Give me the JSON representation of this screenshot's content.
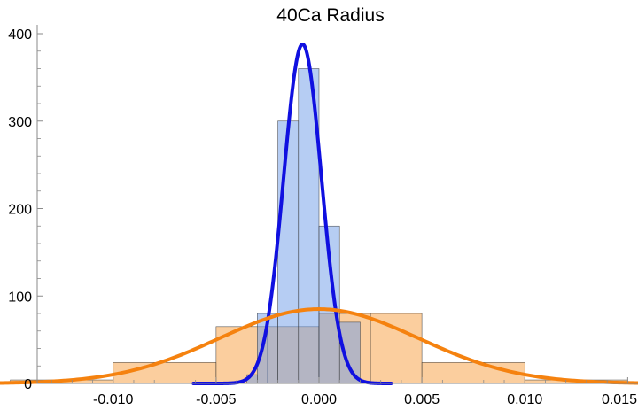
{
  "chart_data": {
    "type": "histogram",
    "title": "40Ca Radius",
    "xlabel": "",
    "ylabel": "",
    "xlim": [
      -0.0155,
      0.0155
    ],
    "ylim": [
      0,
      400
    ],
    "x_ticks": [
      "-0.010",
      "-0.005",
      "0.000",
      "0.005",
      "0.010",
      "0.015"
    ],
    "x_tick_values": [
      -0.01,
      -0.005,
      0.0,
      0.005,
      0.01,
      0.015
    ],
    "y_ticks": [
      "0",
      "100",
      "200",
      "300",
      "400"
    ],
    "y_tick_values": [
      0,
      100,
      200,
      300,
      400
    ],
    "grid": false,
    "histograms": [
      {
        "color": "#6d9be8",
        "bins": [
          {
            "x0": -0.0035,
            "x1": -0.003,
            "count": 10
          },
          {
            "x0": -0.003,
            "x1": -0.002,
            "count": 80
          },
          {
            "x0": -0.002,
            "x1": -0.001,
            "count": 300
          },
          {
            "x0": -0.001,
            "x1": 0.0,
            "count": 360
          },
          {
            "x0": 0.0,
            "x1": 0.001,
            "count": 180
          },
          {
            "x0": 0.001,
            "x1": 0.002,
            "count": 70
          }
        ]
      },
      {
        "color": "#f7a64f",
        "bins": [
          {
            "x0": -0.015,
            "x1": -0.01,
            "count": 4
          },
          {
            "x0": -0.01,
            "x1": -0.005,
            "count": 24
          },
          {
            "x0": -0.005,
            "x1": -0.0025,
            "count": 65
          },
          {
            "x0": -0.0025,
            "x1": 0.0,
            "count": 65
          },
          {
            "x0": 0.0,
            "x1": 0.0025,
            "count": 80
          },
          {
            "x0": 0.0025,
            "x1": 0.005,
            "count": 80
          },
          {
            "x0": 0.005,
            "x1": 0.01,
            "count": 24
          },
          {
            "x0": 0.01,
            "x1": 0.015,
            "count": 4
          }
        ]
      }
    ],
    "curves": [
      {
        "type": "normal",
        "mean": -0.0008,
        "peak": 388,
        "sigma": 0.00092,
        "color": "#1010e0",
        "x_range": [
          -0.0061,
          0.0035
        ]
      },
      {
        "type": "normal",
        "mean": 0.0,
        "peak": 85,
        "sigma": 0.00485,
        "color": "#f5820f",
        "x_range": [
          -0.0155,
          0.0155
        ]
      }
    ]
  }
}
